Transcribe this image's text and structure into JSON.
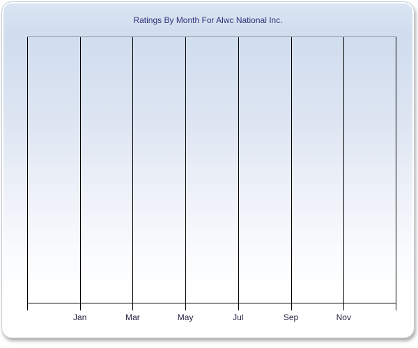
{
  "chart_data": {
    "type": "line",
    "title": "Ratings By Month For Alwc National Inc.",
    "xlabel": "",
    "ylabel": "",
    "x_axis": {
      "tick_labels": [
        "Jan",
        "Mar",
        "May",
        "Jul",
        "Sep",
        "Nov"
      ],
      "gridline_count": 8,
      "gridlines_labeled": "every second gridline from the 2nd through 7th; ticks every 2 months"
    },
    "y_axis": {
      "tick_labels": [],
      "gridlines": "none"
    },
    "series": [],
    "legend": "none",
    "layout_hints": {
      "grid": "vertical black gridlines only",
      "plot_background": "transparent over window gradient (light blue top fading to white bottom)"
    }
  },
  "colors": {
    "window_gradient_top": "#d2ddee",
    "window_gradient_bottom": "#ffffff",
    "gridline": "#000000",
    "plot_top_border": "#a9aeb8",
    "title_text": "#32327a",
    "axis_label_text": "#1e1e3e",
    "window_border": "#c6cbd4",
    "window_inner_stroke": "#ffffff"
  }
}
